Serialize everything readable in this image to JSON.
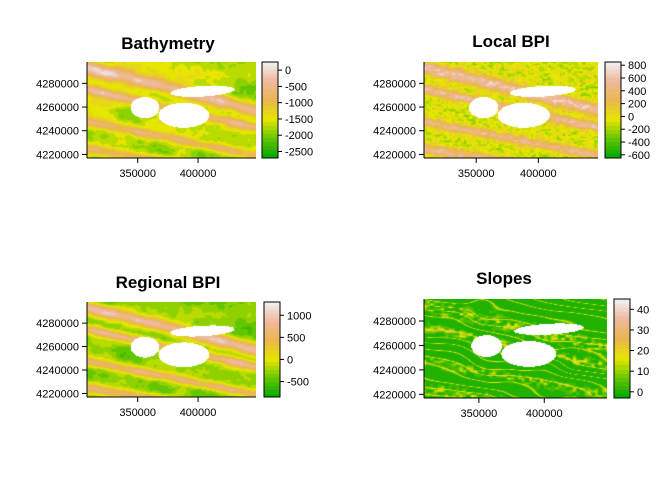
{
  "figure": {
    "panel_count": 4,
    "layout": "2x2",
    "colormap": "terrain.colors"
  },
  "colors": {
    "terrain_stops": [
      "#00A600",
      "#63C600",
      "#E6E600",
      "#EAB64E",
      "#EEB99F",
      "#F2F2F2"
    ],
    "nodata": "#FFFFFF",
    "axis": "#000000"
  },
  "chart_data": [
    {
      "type": "heatmap",
      "title": "Bathymetry",
      "xlabel": "",
      "ylabel": "",
      "x_ticks": [
        350000,
        400000
      ],
      "x_tick_labels": [
        "350000",
        "400000"
      ],
      "y_ticks": [
        4220000,
        4240000,
        4260000,
        4280000
      ],
      "y_tick_labels": [
        "4220000",
        "4240000",
        "4260000",
        "4280000"
      ],
      "xlim": [
        308000,
        448000
      ],
      "ylim": [
        4217000,
        4298000
      ],
      "zlim": [
        -2700,
        250
      ],
      "legend_ticks": [
        0,
        -500,
        -1000,
        -1500,
        -2000,
        -2500
      ],
      "legend_tick_labels": [
        "0",
        "-500",
        "-1000",
        "-1500",
        "-2000",
        "-2500"
      ],
      "legend": "right",
      "value_range": [
        -2700,
        250
      ]
    },
    {
      "type": "heatmap",
      "title": "Local BPI",
      "xlabel": "",
      "ylabel": "",
      "x_ticks": [
        350000,
        400000
      ],
      "x_tick_labels": [
        "350000",
        "400000"
      ],
      "y_ticks": [
        4220000,
        4240000,
        4260000,
        4280000
      ],
      "y_tick_labels": [
        "4220000",
        "4240000",
        "4260000",
        "4280000"
      ],
      "xlim": [
        308000,
        448000
      ],
      "ylim": [
        4217000,
        4298000
      ],
      "zlim": [
        -650,
        850
      ],
      "legend_ticks": [
        800,
        600,
        400,
        200,
        0,
        -200,
        -400,
        -600
      ],
      "legend_tick_labels": [
        "800",
        "600",
        "400",
        "200",
        "0",
        "-200",
        "-400",
        "-600"
      ],
      "legend": "right",
      "value_range": [
        -650,
        850
      ]
    },
    {
      "type": "heatmap",
      "title": "Regional BPI",
      "xlabel": "",
      "ylabel": "",
      "x_ticks": [
        350000,
        400000
      ],
      "x_tick_labels": [
        "350000",
        "400000"
      ],
      "y_ticks": [
        4220000,
        4240000,
        4260000,
        4280000
      ],
      "y_tick_labels": [
        "4220000",
        "4240000",
        "4260000",
        "4280000"
      ],
      "xlim": [
        308000,
        448000
      ],
      "ylim": [
        4217000,
        4298000
      ],
      "zlim": [
        -850,
        1300
      ],
      "legend_ticks": [
        1000,
        500,
        0,
        -500
      ],
      "legend_tick_labels": [
        "1000",
        "500",
        "0",
        "-500"
      ],
      "legend": "right",
      "value_range": [
        -850,
        1300
      ]
    },
    {
      "type": "heatmap",
      "title": "Slopes",
      "xlabel": "",
      "ylabel": "",
      "x_ticks": [
        350000,
        400000
      ],
      "x_tick_labels": [
        "350000",
        "400000"
      ],
      "y_ticks": [
        4220000,
        4240000,
        4260000,
        4280000
      ],
      "y_tick_labels": [
        "4220000",
        "4240000",
        "4260000",
        "4280000"
      ],
      "xlim": [
        308000,
        448000
      ],
      "ylim": [
        4217000,
        4298000
      ],
      "zlim": [
        -3,
        45
      ],
      "legend_ticks": [
        40,
        30,
        20,
        10,
        0
      ],
      "legend_tick_labels": [
        "40",
        "30",
        "20",
        "10",
        "0"
      ],
      "legend": "right",
      "value_range": [
        -3,
        45
      ]
    }
  ]
}
